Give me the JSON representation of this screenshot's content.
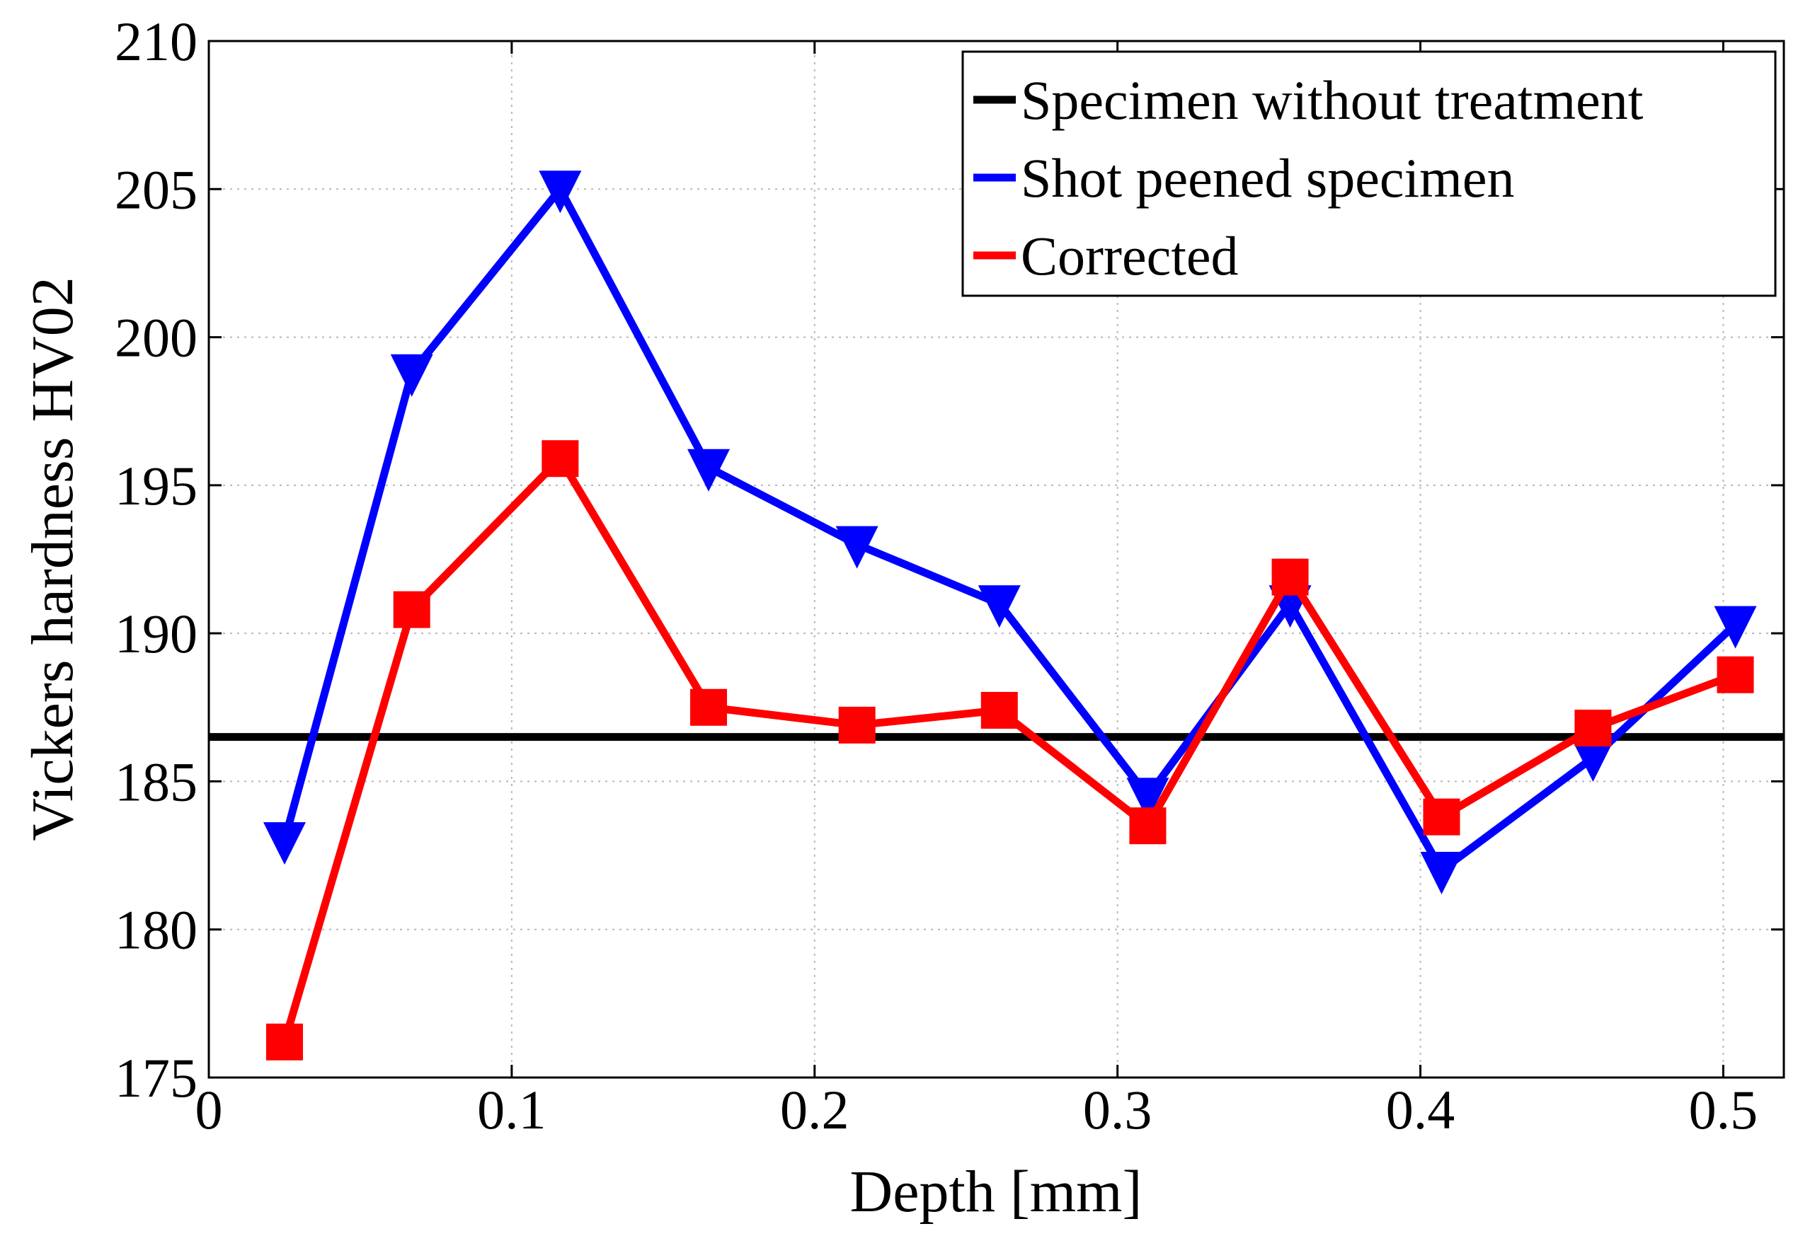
{
  "chart_data": {
    "type": "line",
    "title": "",
    "xlabel": "Depth [mm]",
    "ylabel": "Vickers hardness HV02",
    "xlim": [
      0,
      0.52
    ],
    "ylim": [
      175,
      210
    ],
    "grid": true,
    "legend_position": "top-right",
    "x_tick_values": [
      0,
      0.1,
      0.2,
      0.3,
      0.4,
      0.5
    ],
    "x_tick_labels": [
      "0",
      "0.1",
      "0.2",
      "0.3",
      "0.4",
      "0.5"
    ],
    "y_tick_values": [
      175,
      180,
      185,
      190,
      195,
      200,
      205,
      210
    ],
    "y_tick_labels": [
      "175",
      "180",
      "185",
      "190",
      "195",
      "200",
      "205",
      "210"
    ],
    "series": [
      {
        "name": "Specimen without treatment",
        "color": "#000000",
        "marker": "none",
        "x": [
          0,
          0.52
        ],
        "y": [
          186.5,
          186.5
        ]
      },
      {
        "name": "Shot peened specimen",
        "color": "#0000ff",
        "marker": "triangle-down",
        "x": [
          0.025,
          0.067,
          0.116,
          0.165,
          0.214,
          0.261,
          0.31,
          0.357,
          0.407,
          0.457,
          0.504
        ],
        "y": [
          183,
          198.8,
          205,
          195.6,
          193,
          191,
          184.5,
          191,
          182,
          185.8,
          190.3
        ]
      },
      {
        "name": "Corrected",
        "color": "#ff0000",
        "marker": "square",
        "x": [
          0.025,
          0.067,
          0.116,
          0.165,
          0.214,
          0.261,
          0.31,
          0.357,
          0.407,
          0.457,
          0.504
        ],
        "y": [
          176.2,
          190.8,
          195.9,
          187.5,
          186.9,
          187.4,
          183.5,
          191.9,
          183.8,
          186.8,
          188.6
        ]
      }
    ]
  }
}
